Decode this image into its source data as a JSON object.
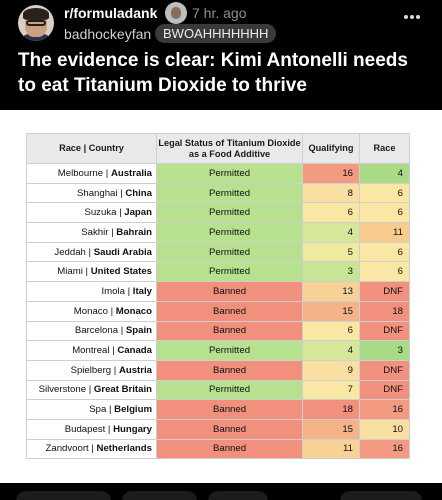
{
  "post": {
    "subreddit": "r/formuladank",
    "time": "7 hr. ago",
    "username": "badhockeyfan",
    "flair": "BWOAHHHHHHH",
    "title": "The evidence is clear: Kimi Antonelli needs to eat Titanium Dioxide to thrive"
  },
  "colors": {
    "permitted": "#b7e08f",
    "banned": "#f1907c",
    "background": "#000000"
  },
  "table": {
    "headers": {
      "race_prefix": "Race | ",
      "race_bold": "Country",
      "legal": "Legal Status of Titanium Dioxide as a Food Additive",
      "qualifying": "Qualifying",
      "race": "Race"
    },
    "rows": [
      {
        "city": "Melbourne",
        "country": "Australia",
        "status": "Permitted",
        "qualifying": "16",
        "race": "4",
        "q_color": "#f39a83",
        "r_color": "#a9da86"
      },
      {
        "city": "Shanghai",
        "country": "China",
        "status": "Permitted",
        "qualifying": "8",
        "race": "6",
        "q_color": "#f8dea0",
        "r_color": "#fbe7a4"
      },
      {
        "city": "Suzuka",
        "country": "Japan",
        "status": "Permitted",
        "qualifying": "6",
        "race": "6",
        "q_color": "#fbe7a4",
        "r_color": "#fbe7a4"
      },
      {
        "city": "Sakhir",
        "country": "Bahrain",
        "status": "Permitted",
        "qualifying": "4",
        "race": "11",
        "q_color": "#d6e79a",
        "r_color": "#f8cc8f"
      },
      {
        "city": "Jeddah",
        "country": "Saudi Arabia",
        "status": "Permitted",
        "qualifying": "5",
        "race": "6",
        "q_color": "#eeea9f",
        "r_color": "#fbe7a4"
      },
      {
        "city": "Miami",
        "country": "United States",
        "status": "Permitted",
        "qualifying": "3",
        "race": "6",
        "q_color": "#c8e495",
        "r_color": "#fbe7a4"
      },
      {
        "city": "Imola",
        "country": "Italy",
        "status": "Banned",
        "qualifying": "13",
        "race": "DNF",
        "q_color": "#f8d196",
        "r_color": "#f1907c"
      },
      {
        "city": "Monaco",
        "country": "Monaco",
        "status": "Banned",
        "qualifying": "15",
        "race": "18",
        "q_color": "#f5b38a",
        "r_color": "#f1907c"
      },
      {
        "city": "Barcelona",
        "country": "Spain",
        "status": "Banned",
        "qualifying": "6",
        "race": "DNF",
        "q_color": "#fbe7a4",
        "r_color": "#f1907c"
      },
      {
        "city": "Montreal",
        "country": "Canada",
        "status": "Permitted",
        "qualifying": "4",
        "race": "3",
        "q_color": "#d6e79a",
        "r_color": "#a9da86"
      },
      {
        "city": "Spielberg",
        "country": "Austria",
        "status": "Banned",
        "qualifying": "9",
        "race": "DNF",
        "q_color": "#f8dea0",
        "r_color": "#f1907c"
      },
      {
        "city": "Silverstone",
        "country": "Great Britain",
        "status": "Permitted",
        "qualifying": "7",
        "race": "DNF",
        "q_color": "#fbe7a4",
        "r_color": "#f1907c"
      },
      {
        "city": "Spa",
        "country": "Belgium",
        "status": "Banned",
        "qualifying": "18",
        "race": "16",
        "q_color": "#f1907c",
        "r_color": "#f39a83"
      },
      {
        "city": "Budapest",
        "country": "Hungary",
        "status": "Banned",
        "qualifying": "15",
        "race": "10",
        "q_color": "#f5b38a",
        "r_color": "#f8dea0"
      },
      {
        "city": "Zandvoort",
        "country": "Netherlands",
        "status": "Banned",
        "qualifying": "11",
        "race": "16",
        "q_color": "#f8d196",
        "r_color": "#f39a83"
      }
    ]
  }
}
